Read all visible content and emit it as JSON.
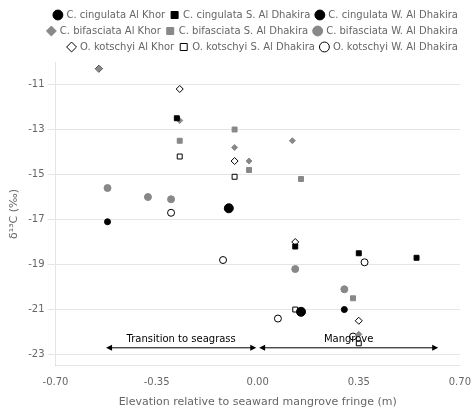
{
  "chart_data": {
    "type": "scatter",
    "xlabel": "Elevation relative to seaward mangrove fringe (m)",
    "ylabel": "δ¹³C (‰)",
    "xlim": [
      -0.7,
      0.7
    ],
    "ylim": [
      -23.5,
      -10
    ],
    "xticks": [
      {
        "value": -0.7,
        "label": "-0.70"
      },
      -0.35,
      {
        "value": 0,
        "label": "0.00"
      },
      0.35,
      {
        "value": 0.7,
        "label": "0.70"
      }
    ],
    "yticks": [
      -23,
      -21,
      -19,
      -17,
      -15,
      -13,
      -11
    ],
    "grid": "y",
    "legend": "upper right",
    "series": [
      {
        "name": "C. cingulata Al Khor",
        "color": "black",
        "marker": "circle",
        "x": [
          -0.52,
          0.15,
          0.3
        ],
        "y": [
          -17.1,
          -21.1,
          -21.0
        ]
      },
      {
        "name": "C. cingulata S. Al Dhakira",
        "color": "black",
        "marker": "square",
        "x": [
          -0.28,
          0.13,
          0.35,
          0.55
        ],
        "y": [
          -12.5,
          -18.2,
          -18.5,
          -18.7
        ]
      },
      {
        "name": "C. cingulata W. Al Dhakira",
        "color": "black",
        "marker": "circle",
        "x": [
          -0.1,
          0.15
        ],
        "y": [
          -16.5,
          -21.1
        ]
      },
      {
        "name": "C. bifasciata Al Khor",
        "color": "#888888",
        "marker": "diamond",
        "x": [
          -0.55,
          -0.27,
          -0.08,
          -0.03,
          0.12,
          0.35
        ],
        "y": [
          -10.3,
          -12.6,
          -13.8,
          -14.4,
          -13.5,
          -22.1
        ]
      },
      {
        "name": "C. bifasciata S. Al Dhakira",
        "color": "#888888",
        "marker": "square",
        "x": [
          -0.27,
          -0.08,
          -0.03,
          0.15,
          0.33
        ],
        "y": [
          -13.5,
          -13.0,
          -14.8,
          -15.2,
          -20.5
        ]
      },
      {
        "name": "C. bifasciata W. Al Dhakira",
        "color": "#888888",
        "marker": "circle",
        "x": [
          -0.52,
          -0.38,
          -0.3,
          0.13,
          0.3
        ],
        "y": [
          -15.6,
          -16.0,
          -16.1,
          -19.2,
          -20.1
        ]
      },
      {
        "name": "O. kotschyi Al Khor",
        "color": "black",
        "marker": "diamond-open",
        "x": [
          -0.55,
          -0.27,
          -0.08,
          0.13,
          0.35
        ],
        "y": [
          -10.3,
          -11.2,
          -14.4,
          -18.0,
          -21.5
        ]
      },
      {
        "name": "O. kotschyi S. Al Dhakira",
        "color": "black",
        "marker": "square-open",
        "x": [
          -0.27,
          -0.08,
          0.13,
          0.35
        ],
        "y": [
          -14.2,
          -15.1,
          -21.0,
          -22.5
        ]
      },
      {
        "name": "O. kotschyi W. Al Dhakira",
        "color": "black",
        "marker": "circle-open",
        "x": [
          -0.3,
          -0.12,
          0.07,
          0.33,
          0.37
        ],
        "y": [
          -16.7,
          -18.8,
          -21.4,
          -22.2,
          -18.9
        ]
      }
    ],
    "annotations": [
      {
        "text": "Transition to seagrass",
        "x_start": -0.525,
        "x_end": -0.005,
        "y": -22.7
      },
      {
        "text": "Mangrove",
        "x_start": 0.005,
        "x_end": 0.625,
        "y": -22.7
      }
    ]
  }
}
